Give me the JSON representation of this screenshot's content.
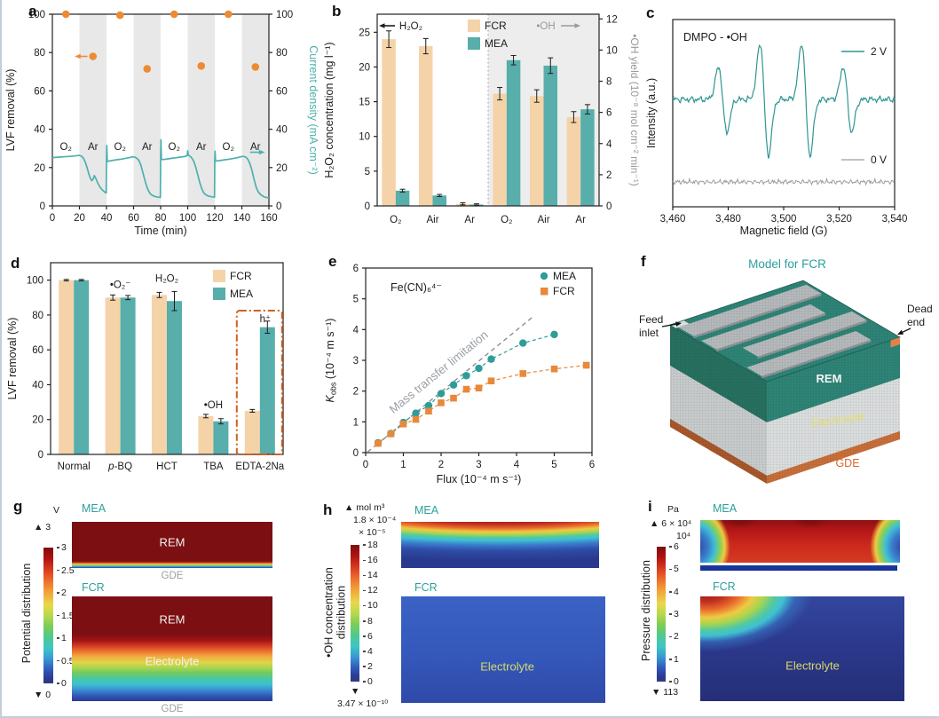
{
  "colors": {
    "teal": "#2d9d99",
    "teal_bar": "#57aeab",
    "tan_bar": "#f5d3a8",
    "orange": "#ee8a33",
    "band_gray": "#e8e8e8",
    "title_teal": "#2ba09b",
    "dark_red": "#7c0f12"
  },
  "panel_f": {
    "label": "f",
    "title": "Model for FCR",
    "feed_line1": "Feed",
    "feed_line2": "inlet",
    "dead_line1": "Dead",
    "dead_line2": "end",
    "rem": "REM",
    "electrolyte": "Electrolyte",
    "gde": "GDE"
  },
  "panel_g": {
    "label": "g",
    "axis_label": "Potential distribution",
    "colorbar": {
      "unit": "V",
      "max_marker": "▲ 3",
      "ticks": [
        "3",
        "2.5",
        "2",
        "1.5",
        "1",
        "0.5",
        "0"
      ],
      "min_marker": "▼ 0"
    },
    "mea": {
      "title": "MEA",
      "region": "REM",
      "below": "GDE"
    },
    "fcr": {
      "title": "FCR",
      "region_top": "REM",
      "region_mid": "Electrolyte",
      "below": "GDE"
    }
  },
  "panel_h": {
    "label": "h",
    "axis_label": "•OH concentration distribution",
    "colorbar": {
      "unit": "▲ mol m³",
      "max_value": "1.8 × 10⁻⁴",
      "scale": "× 10⁻⁵",
      "ticks": [
        "18",
        "16",
        "14",
        "12",
        "10",
        "8",
        "6",
        "4",
        "2",
        "0"
      ],
      "min_marker": "▼",
      "min_value": "3.47 × 10⁻¹⁰"
    },
    "mea": {
      "title": "MEA"
    },
    "fcr": {
      "title": "FCR",
      "region": "Electrolyte"
    }
  },
  "panel_i": {
    "label": "i",
    "axis_label": "Pressure distribution",
    "colorbar": {
      "unit": "Pa",
      "max_marker": "▲ 6 × 10⁴",
      "scale": "10⁴",
      "ticks": [
        "6",
        "5",
        "4",
        "3",
        "2",
        "1",
        "0"
      ],
      "min_marker": "▼ 113"
    },
    "mea": {
      "title": "MEA"
    },
    "fcr": {
      "title": "FCR",
      "region": "Electrolyte"
    }
  },
  "chart_data": [
    {
      "id": "a",
      "label": "a",
      "type": "line",
      "xlabel": "Time (min)",
      "xlim": [
        0,
        160
      ],
      "xticks": [
        0,
        20,
        40,
        60,
        80,
        100,
        120,
        140,
        160
      ],
      "ylabel_left": "LVF removal (%)",
      "ylim_left": [
        0,
        100
      ],
      "yticks_left": [
        0,
        20,
        40,
        60,
        80,
        100
      ],
      "ylabel_right": "Current density (mA cm⁻²)",
      "ylim_right": [
        0,
        100
      ],
      "yticks_right": [
        0,
        20,
        40,
        60,
        80,
        100
      ],
      "ar_bands": [
        [
          20,
          40
        ],
        [
          60,
          80
        ],
        [
          100,
          120
        ],
        [
          140,
          160
        ]
      ],
      "gas_labels": [
        {
          "text": "O₂",
          "x": 10
        },
        {
          "text": "Ar",
          "x": 30
        },
        {
          "text": "O₂",
          "x": 50
        },
        {
          "text": "Ar",
          "x": 70
        },
        {
          "text": "O₂",
          "x": 90
        },
        {
          "text": "Ar",
          "x": 110
        },
        {
          "text": "O₂",
          "x": 130
        },
        {
          "text": "Ar",
          "x": 150
        }
      ],
      "lvf_removal_points": [
        [
          10,
          100
        ],
        [
          30,
          78
        ],
        [
          50,
          99.5
        ],
        [
          70,
          71.5
        ],
        [
          90,
          100
        ],
        [
          110,
          73
        ],
        [
          130,
          100
        ],
        [
          150,
          72.5
        ]
      ],
      "current_density_curve": [
        [
          0,
          25.2
        ],
        [
          4,
          25.4
        ],
        [
          8,
          25.6
        ],
        [
          12,
          25.8
        ],
        [
          16,
          26.0
        ],
        [
          19,
          26.3
        ],
        [
          20,
          26.3
        ],
        [
          21.5,
          26.0
        ],
        [
          23,
          24.8
        ],
        [
          24.5,
          22.5
        ],
        [
          26,
          19.0
        ],
        [
          27.5,
          15.5
        ],
        [
          29,
          13.2
        ],
        [
          30,
          13.8
        ],
        [
          31,
          15.8
        ],
        [
          32,
          14.5
        ],
        [
          33.5,
          12.0
        ],
        [
          35,
          10.0
        ],
        [
          36.5,
          8.6
        ],
        [
          38,
          7.6
        ],
        [
          39.5,
          6.8
        ],
        [
          39.8,
          6.8
        ],
        [
          40,
          24.0
        ],
        [
          40.2,
          31.5
        ],
        [
          40.6,
          23.2
        ],
        [
          42,
          23.4
        ],
        [
          45,
          23.8
        ],
        [
          48,
          24.1
        ],
        [
          51,
          24.4
        ],
        [
          54,
          24.8
        ],
        [
          57,
          25.2
        ],
        [
          59.5,
          25.6
        ],
        [
          61,
          25.4
        ],
        [
          62.5,
          24.8
        ],
        [
          64,
          23.6
        ],
        [
          65.5,
          21.0
        ],
        [
          67,
          17.0
        ],
        [
          68.5,
          13.0
        ],
        [
          70,
          9.5
        ],
        [
          71.5,
          7.2
        ],
        [
          73,
          5.9
        ],
        [
          75,
          5.1
        ],
        [
          77,
          4.7
        ],
        [
          79,
          4.5
        ],
        [
          79.8,
          4.4
        ],
        [
          80,
          25.0
        ],
        [
          80.2,
          34.5
        ],
        [
          80.6,
          24.2
        ],
        [
          82,
          24.2
        ],
        [
          85,
          24.5
        ],
        [
          88,
          24.8
        ],
        [
          91,
          25.1
        ],
        [
          94,
          25.4
        ],
        [
          97,
          25.7
        ],
        [
          99,
          26.0
        ],
        [
          99.6,
          26.2
        ],
        [
          100,
          28.8
        ],
        [
          100.5,
          26.5
        ],
        [
          101.5,
          26.0
        ],
        [
          103,
          25.0
        ],
        [
          104.5,
          23.2
        ],
        [
          106,
          20.0
        ],
        [
          107.5,
          16.0
        ],
        [
          109,
          12.0
        ],
        [
          110.5,
          8.8
        ],
        [
          112,
          6.6
        ],
        [
          114,
          5.5
        ],
        [
          116,
          5.0
        ],
        [
          118,
          4.7
        ],
        [
          119.8,
          4.6
        ],
        [
          120,
          23.0
        ],
        [
          120.2,
          28.5
        ],
        [
          120.6,
          23.4
        ],
        [
          122,
          23.5
        ],
        [
          125,
          23.8
        ],
        [
          128,
          24.1
        ],
        [
          131,
          24.4
        ],
        [
          134,
          24.8
        ],
        [
          137,
          25.2
        ],
        [
          140,
          25.8
        ],
        [
          141.5,
          25.8
        ],
        [
          143,
          25.4
        ],
        [
          144.5,
          24.2
        ],
        [
          146,
          22.0
        ],
        [
          147.5,
          18.5
        ],
        [
          149,
          14.0
        ],
        [
          150.5,
          10.0
        ],
        [
          152,
          7.4
        ],
        [
          154,
          5.8
        ],
        [
          156,
          4.9
        ],
        [
          158,
          4.4
        ],
        [
          160,
          4.2
        ]
      ],
      "removal_color": "#ee8a33",
      "current_color": "#4cb1ad",
      "band_color": "#e8e8e8"
    },
    {
      "id": "b",
      "label": "b",
      "type": "bar",
      "ylabel_left": "H₂O₂ concentration (mg l⁻¹)",
      "ylim_left": [
        0,
        27.6
      ],
      "yticks_left": [
        0,
        5,
        10,
        15,
        20,
        25
      ],
      "ylabel_right": "•OH yield (10⁻⁸ mol cm⁻² min⁻¹)",
      "ylim_right": [
        0,
        12.3
      ],
      "yticks_right": [
        0,
        2,
        4,
        6,
        8,
        10,
        12
      ],
      "annotation_left": "H₂O₂",
      "annotation_right": "•OH",
      "legend": [
        {
          "name": "FCR",
          "color": "#f5d3a8"
        },
        {
          "name": "MEA",
          "color": "#57aeab"
        }
      ],
      "h2o2_group": {
        "categories": [
          "O₂",
          "Air",
          "Ar"
        ],
        "FCR": [
          24,
          23,
          0.3
        ],
        "FCR_err": [
          1.2,
          1.1,
          0.15
        ],
        "MEA": [
          2.2,
          1.5,
          0.2
        ],
        "MEA_err": [
          0.2,
          0.15,
          0.1
        ]
      },
      "oh_group": {
        "categories": [
          "O₂",
          "Air",
          "Ar"
        ],
        "FCR": [
          7.2,
          7.05,
          5.7
        ],
        "FCR_err": [
          0.4,
          0.4,
          0.35
        ],
        "MEA": [
          9.35,
          9.0,
          6.2
        ],
        "MEA_err": [
          0.3,
          0.5,
          0.3
        ]
      }
    },
    {
      "id": "c",
      "label": "c",
      "type": "line",
      "xlabel": "Magnetic field (G)",
      "xlim": [
        3460,
        3540
      ],
      "xticks": [
        3460,
        3480,
        3500,
        3520,
        3540
      ],
      "xtick_labels": [
        "3,460",
        "3,480",
        "3,500",
        "3,520",
        "3,540"
      ],
      "ylabel": "Intensity (a.u.)",
      "annotation": "DMPO - •OH",
      "series": [
        {
          "name": "2 V",
          "color": "#2e9692",
          "peaks": [
            3478,
            3493,
            3508,
            3523
          ],
          "peak_rel_amplitudes": [
            0.58,
            1,
            1,
            0.58
          ]
        },
        {
          "name": "0 V",
          "color": "#9e9e9e",
          "peaks": []
        }
      ]
    },
    {
      "id": "d",
      "label": "d",
      "type": "bar",
      "categories": [
        "Normal",
        "*p*-BQ",
        "HCT",
        "TBA",
        "EDTA-2Na"
      ],
      "ylabel": "LVF removal (%)",
      "ylim": [
        0,
        110
      ],
      "yticks": [
        0,
        20,
        40,
        60,
        80,
        100
      ],
      "series": [
        {
          "name": "FCR",
          "color": "#f5d3a8",
          "values": [
            100,
            90,
            91.5,
            22,
            25
          ],
          "errors": [
            0.4,
            1.5,
            1.5,
            1,
            0.8
          ]
        },
        {
          "name": "MEA",
          "color": "#57aeab",
          "values": [
            100,
            90,
            88,
            19,
            73
          ],
          "errors": [
            0.4,
            1.2,
            5.5,
            1.5,
            3.5
          ]
        }
      ],
      "scavenger_labels": [
        {
          "text": "•O₂⁻",
          "cat": 1,
          "y": 95.5,
          "dx": 0
        },
        {
          "text": "H₂O₂",
          "cat": 2,
          "y": 99,
          "dx": 0
        },
        {
          "text": "•OH",
          "cat": 3,
          "y": 26.5,
          "dx": 0
        },
        {
          "text": "h⁺",
          "cat": 4,
          "y": 76,
          "dx": 6
        }
      ],
      "highlight_box": {
        "category": 4,
        "color": "#d2601a"
      }
    },
    {
      "id": "e",
      "label": "e",
      "type": "scatter",
      "xlabel": "Flux (10⁻⁴ m s⁻¹)",
      "xlim": [
        0,
        6
      ],
      "xticks": [
        0,
        1,
        2,
        3,
        4,
        5,
        6
      ],
      "ylabel": "*K*~obs~ (10⁻⁴ m s⁻¹)",
      "ylim": [
        0,
        6
      ],
      "yticks": [
        0,
        1,
        2,
        3,
        4,
        5,
        6
      ],
      "annotation": "Fe(CN)₆⁴⁻",
      "mass_transfer_line": {
        "label": "Mass transfer limitation",
        "from": [
          0.05,
          0.02
        ],
        "to": [
          4.42,
          4.4
        ]
      },
      "series": [
        {
          "name": "MEA",
          "color": "#2d9d99",
          "marker": "circle",
          "points": [
            [
              0.33,
              0.32
            ],
            [
              0.67,
              0.62
            ],
            [
              1,
              0.98
            ],
            [
              1.33,
              1.28
            ],
            [
              1.67,
              1.53
            ],
            [
              2,
              1.92
            ],
            [
              2.33,
              2.2
            ],
            [
              2.67,
              2.5
            ],
            [
              3,
              2.74
            ],
            [
              3.33,
              3.04
            ],
            [
              4.17,
              3.56
            ],
            [
              5,
              3.84
            ]
          ]
        },
        {
          "name": "FCR",
          "color": "#e8883b",
          "marker": "square",
          "points": [
            [
              0.33,
              0.3
            ],
            [
              0.67,
              0.61
            ],
            [
              1,
              0.93
            ],
            [
              1.33,
              1.08
            ],
            [
              1.67,
              1.35
            ],
            [
              2,
              1.62
            ],
            [
              2.33,
              1.77
            ],
            [
              2.67,
              2.06
            ],
            [
              3,
              2.1
            ],
            [
              3.33,
              2.33
            ],
            [
              4.17,
              2.57
            ],
            [
              5,
              2.72
            ],
            [
              5.85,
              2.84
            ]
          ]
        }
      ]
    }
  ]
}
